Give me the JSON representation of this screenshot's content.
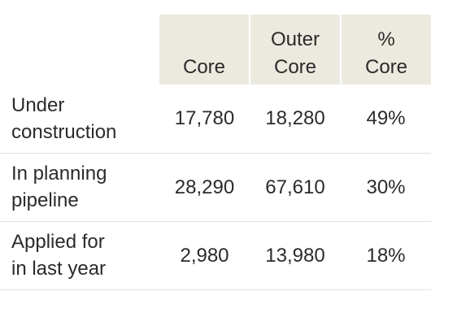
{
  "table": {
    "headers": [
      {
        "line1": "",
        "line2": "Core"
      },
      {
        "line1": "Outer",
        "line2": "Core"
      },
      {
        "line1": "%",
        "line2": "Core"
      }
    ],
    "rows": [
      {
        "label_line1": "Under",
        "label_line2": "construction",
        "core": "17,780",
        "outer_core": "18,280",
        "pct_core": "49%"
      },
      {
        "label_line1": "In planning",
        "label_line2": "pipeline",
        "core": "28,290",
        "outer_core": "67,610",
        "pct_core": "30%"
      },
      {
        "label_line1": "Applied for",
        "label_line2": "in last year",
        "core": "2,980",
        "outer_core": "13,980",
        "pct_core": "18%"
      }
    ]
  },
  "colors": {
    "header_bg": "#ece9df",
    "text": "#2b2b2b",
    "row_divider": "#e3e0d6"
  }
}
